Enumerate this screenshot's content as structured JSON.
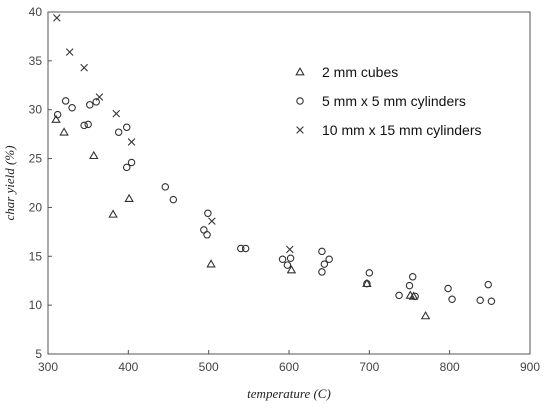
{
  "chart_data": {
    "type": "scatter",
    "title": "",
    "xlabel": "temperature (C)",
    "ylabel": "char yield (%)",
    "xlim": [
      300,
      900
    ],
    "ylim": [
      5,
      40
    ],
    "x_ticks": [
      300,
      400,
      500,
      600,
      700,
      800,
      900
    ],
    "y_ticks": [
      5,
      10,
      15,
      20,
      25,
      30,
      35,
      40
    ],
    "grid": false,
    "legend_position": "top-right",
    "series": [
      {
        "name": "2 mm cubes",
        "marker": "triangle",
        "points": [
          [
            310,
            29
          ],
          [
            320,
            27.7
          ],
          [
            357,
            25.3
          ],
          [
            381,
            19.3
          ],
          [
            401,
            20.9
          ],
          [
            503,
            14.2
          ],
          [
            603,
            13.6
          ],
          [
            697,
            12.2
          ],
          [
            751,
            11
          ],
          [
            755,
            10.9
          ],
          [
            770,
            8.9
          ]
        ]
      },
      {
        "name": "5 mm x 5 mm cylinders",
        "marker": "circle",
        "points": [
          [
            312,
            29.5
          ],
          [
            322,
            30.9
          ],
          [
            330,
            30.2
          ],
          [
            345,
            28.4
          ],
          [
            350,
            28.5
          ],
          [
            352,
            30.5
          ],
          [
            360,
            30.8
          ],
          [
            388,
            27.7
          ],
          [
            398,
            28.2
          ],
          [
            398,
            24.1
          ],
          [
            404,
            24.6
          ],
          [
            446,
            22.1
          ],
          [
            456,
            20.8
          ],
          [
            494,
            17.7
          ],
          [
            498,
            17.2
          ],
          [
            499,
            19.4
          ],
          [
            540,
            15.8
          ],
          [
            546,
            15.8
          ],
          [
            592,
            14.7
          ],
          [
            598,
            14.1
          ],
          [
            602,
            14.8
          ],
          [
            641,
            15.5
          ],
          [
            641,
            13.4
          ],
          [
            644,
            14.2
          ],
          [
            650,
            14.7
          ],
          [
            697,
            12.2
          ],
          [
            700,
            13.3
          ],
          [
            737,
            11
          ],
          [
            750,
            12
          ],
          [
            754,
            12.9
          ],
          [
            757,
            10.9
          ],
          [
            798,
            11.7
          ],
          [
            803,
            10.6
          ],
          [
            838,
            10.5
          ],
          [
            848,
            12.1
          ],
          [
            852,
            10.4
          ]
        ]
      },
      {
        "name": "10 mm x 15 mm cylinders",
        "marker": "cross",
        "points": [
          [
            311,
            39.4
          ],
          [
            327,
            35.9
          ],
          [
            345,
            34.3
          ],
          [
            364,
            31.3
          ],
          [
            385,
            29.6
          ],
          [
            404,
            26.7
          ],
          [
            504,
            18.6
          ],
          [
            601,
            15.7
          ]
        ]
      }
    ]
  }
}
